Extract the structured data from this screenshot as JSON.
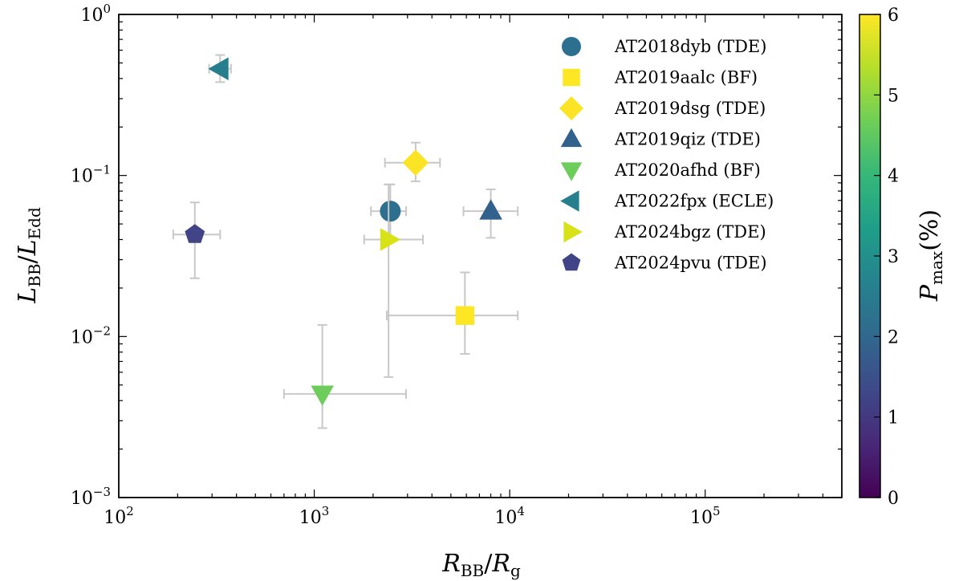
{
  "chart_data": {
    "type": "scatter",
    "xscale": "log",
    "yscale": "log",
    "xlim": [
      100,
      500000
    ],
    "ylim": [
      0.001,
      1
    ],
    "xlabel": {
      "main": "R",
      "sub": "BB",
      "sep": "/",
      "main2": "R",
      "sub2": "g"
    },
    "ylabel": {
      "main": "L",
      "sub": "BB",
      "sep": "/",
      "main2": "L",
      "sub2": "Edd"
    },
    "x_ticks": [
      {
        "value": 100,
        "base": "10",
        "exp": "2"
      },
      {
        "value": 1000,
        "base": "10",
        "exp": "3"
      },
      {
        "value": 10000,
        "base": "10",
        "exp": "4"
      },
      {
        "value": 100000,
        "base": "10",
        "exp": "5"
      }
    ],
    "y_ticks": [
      {
        "value": 0.001,
        "base": "10",
        "exp": "−3"
      },
      {
        "value": 0.01,
        "base": "10",
        "exp": "−2"
      },
      {
        "value": 0.1,
        "base": "10",
        "exp": "−1"
      },
      {
        "value": 1,
        "base": "10",
        "exp": "0"
      }
    ],
    "colorbar": {
      "label_main": "P",
      "label_sub": "max",
      "label_unit": "(%)",
      "min": 0,
      "max": 6,
      "ticks": [
        "0",
        "1",
        "2",
        "3",
        "4",
        "5",
        "6"
      ],
      "colormap": "viridis",
      "stops": [
        "#440154",
        "#482878",
        "#3e4989",
        "#31688e",
        "#26828e",
        "#1f9e89",
        "#35b779",
        "#6ece58",
        "#b5de2b",
        "#fde725"
      ]
    },
    "legend_position": "top-right",
    "points": [
      {
        "label": "AT2018dyb (TDE)",
        "marker": "circle",
        "x": 2450,
        "y": 0.06,
        "x_err": [
          1950,
          2950
        ],
        "y_err": [
          0.04,
          0.088
        ],
        "color": "#2c6f8e"
      },
      {
        "label": "AT2019aalc (BF)",
        "marker": "square",
        "x": 5900,
        "y": 0.0135,
        "x_err": [
          2350,
          11000
        ],
        "y_err": [
          0.0078,
          0.025
        ],
        "color": "#fde725"
      },
      {
        "label": "AT2019dsg (TDE)",
        "marker": "diamond",
        "x": 3300,
        "y": 0.12,
        "x_err": [
          2300,
          4400
        ],
        "y_err": [
          0.092,
          0.16
        ],
        "color": "#fbe325"
      },
      {
        "label": "AT2019qiz (TDE)",
        "marker": "triangle-up",
        "x": 8000,
        "y": 0.06,
        "x_err": [
          5800,
          11000
        ],
        "y_err": [
          0.041,
          0.082
        ],
        "color": "#32618d"
      },
      {
        "label": "AT2020afhd (BF)",
        "marker": "triangle-down",
        "x": 1100,
        "y": 0.0044,
        "x_err": [
          700,
          2950
        ],
        "y_err": [
          0.0027,
          0.0118
        ],
        "color": "#6ccd5a"
      },
      {
        "label": "AT2022fpx (ECLE)",
        "marker": "triangle-left",
        "x": 330,
        "y": 0.46,
        "x_err": [
          290,
          375
        ],
        "y_err": [
          0.38,
          0.56
        ],
        "color": "#277f8e"
      },
      {
        "label": "AT2024bgz (TDE)",
        "marker": "triangle-right",
        "x": 2400,
        "y": 0.04,
        "x_err": [
          1800,
          3600
        ],
        "y_err": [
          0.0056,
          0.088
        ],
        "color": "#d7e219"
      },
      {
        "label": "AT2024pvu (TDE)",
        "marker": "pentagon",
        "x": 245,
        "y": 0.043,
        "x_err": [
          190,
          330
        ],
        "y_err": [
          0.023,
          0.068
        ],
        "color": "#414487"
      }
    ]
  }
}
